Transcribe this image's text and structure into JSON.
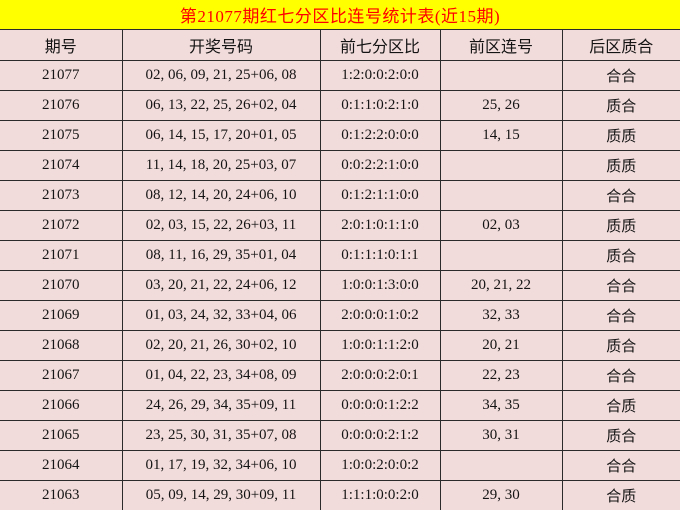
{
  "title": "第21077期红七分区比连号统计表(近15期)",
  "colors": {
    "title_background": "#ffff00",
    "title_text": "#ff0000",
    "cell_background": "#f2dcdb",
    "border": "#2b2b2b",
    "cell_text": "#141414"
  },
  "table": {
    "headers": [
      "期号",
      "开奖号码",
      "前七分区比",
      "前区连号",
      "后区质合"
    ],
    "rows": [
      [
        "21077",
        "02, 06, 09, 21, 25+06, 08",
        "1:2:0:0:2:0:0",
        "",
        "合合"
      ],
      [
        "21076",
        "06, 13, 22, 25, 26+02, 04",
        "0:1:1:0:2:1:0",
        "25, 26",
        "质合"
      ],
      [
        "21075",
        "06, 14, 15, 17, 20+01, 05",
        "0:1:2:2:0:0:0",
        "14, 15",
        "质质"
      ],
      [
        "21074",
        "11, 14, 18, 20, 25+03, 07",
        "0:0:2:2:1:0:0",
        "",
        "质质"
      ],
      [
        "21073",
        "08, 12, 14, 20, 24+06, 10",
        "0:1:2:1:1:0:0",
        "",
        "合合"
      ],
      [
        "21072",
        "02, 03, 15, 22, 26+03, 11",
        "2:0:1:0:1:1:0",
        "02, 03",
        "质质"
      ],
      [
        "21071",
        "08, 11, 16, 29, 35+01, 04",
        "0:1:1:1:0:1:1",
        "",
        "质合"
      ],
      [
        "21070",
        "03, 20, 21, 22, 24+06, 12",
        "1:0:0:1:3:0:0",
        "20, 21, 22",
        "合合"
      ],
      [
        "21069",
        "01, 03, 24, 32, 33+04, 06",
        "2:0:0:0:1:0:2",
        "32, 33",
        "合合"
      ],
      [
        "21068",
        "02, 20, 21, 26, 30+02, 10",
        "1:0:0:1:1:2:0",
        "20, 21",
        "质合"
      ],
      [
        "21067",
        "01, 04, 22, 23, 34+08, 09",
        "2:0:0:0:2:0:1",
        "22, 23",
        "合合"
      ],
      [
        "21066",
        "24, 26, 29, 34, 35+09, 11",
        "0:0:0:0:1:2:2",
        "34, 35",
        "合质"
      ],
      [
        "21065",
        "23, 25, 30, 31, 35+07, 08",
        "0:0:0:0:2:1:2",
        "30, 31",
        "质合"
      ],
      [
        "21064",
        "01, 17, 19, 32, 34+06, 10",
        "1:0:0:2:0:0:2",
        "",
        "合合"
      ],
      [
        "21063",
        "05, 09, 14, 29, 30+09, 11",
        "1:1:1:0:0:2:0",
        "29, 30",
        "合质"
      ]
    ]
  }
}
